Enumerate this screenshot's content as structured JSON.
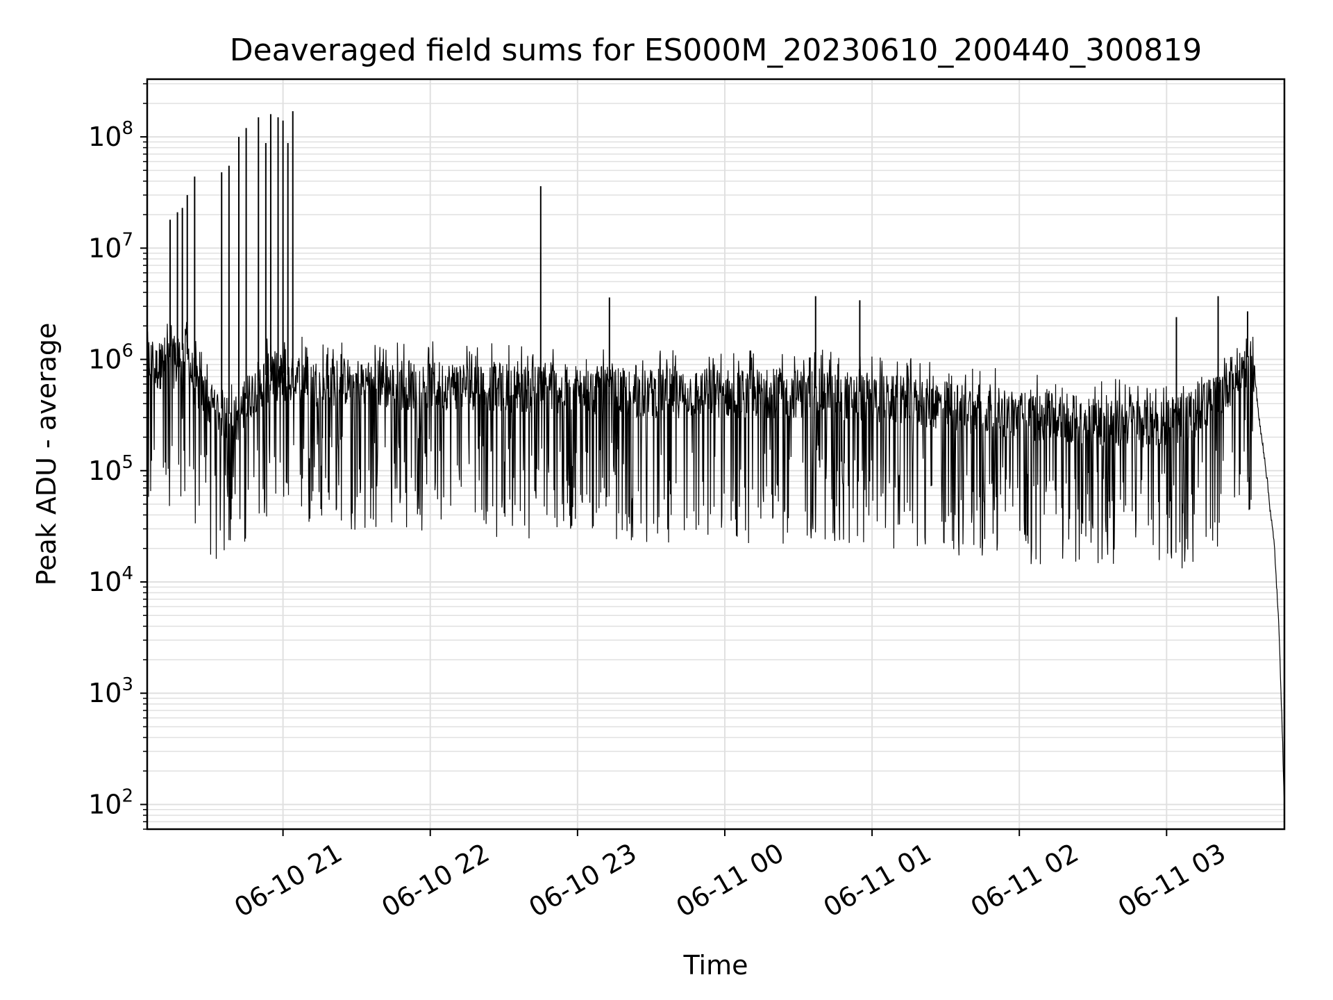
{
  "chart_data": {
    "type": "line",
    "title": "Deaveraged field sums for ES000M_20230610_200440_300819",
    "xlabel": "Time",
    "ylabel": "Peak ADU - average",
    "yscale": "log",
    "ylim": [
      60,
      330000000
    ],
    "xlim": [
      "2023-06-10 20:04:40",
      "2023-06-11 03:48:00"
    ],
    "grid": true,
    "line_color": "#000000",
    "grid_color": "#e0e0e0",
    "x_ticks": [
      {
        "value": "2023-06-10 21:00",
        "label": "06-10 21"
      },
      {
        "value": "2023-06-10 22:00",
        "label": "06-10 22"
      },
      {
        "value": "2023-06-10 23:00",
        "label": "06-10 23"
      },
      {
        "value": "2023-06-11 00:00",
        "label": "06-11 00"
      },
      {
        "value": "2023-06-11 01:00",
        "label": "06-11 01"
      },
      {
        "value": "2023-06-11 02:00",
        "label": "06-11 02"
      },
      {
        "value": "2023-06-11 03:00",
        "label": "06-11 03"
      }
    ],
    "y_ticks": [
      {
        "value": 100,
        "base": "10",
        "exp": "2"
      },
      {
        "value": 1000,
        "base": "10",
        "exp": "3"
      },
      {
        "value": 10000,
        "base": "10",
        "exp": "4"
      },
      {
        "value": 100000,
        "base": "10",
        "exp": "5"
      },
      {
        "value": 1000000,
        "base": "10",
        "exp": "6"
      },
      {
        "value": 10000000,
        "base": "10",
        "exp": "7"
      },
      {
        "value": 100000000,
        "base": "10",
        "exp": "8"
      }
    ],
    "series": [
      {
        "x": [
          "2023-06-10 20:04:40",
          "2023-06-10 20:08:00",
          "2023-06-10 20:12:00",
          "2023-06-10 20:16:00",
          "2023-06-10 20:20:00",
          "2023-06-10 20:24:00",
          "2023-06-10 20:28:00",
          "2023-06-10 20:32:00",
          "2023-06-10 20:36:00",
          "2023-06-10 20:40:00",
          "2023-06-10 20:44:00",
          "2023-06-10 20:48:00",
          "2023-06-10 20:52:00",
          "2023-06-10 20:56:00",
          "2023-06-10 21:00:00",
          "2023-06-10 21:04:00",
          "2023-06-10 21:08:00",
          "2023-06-10 21:12:00",
          "2023-06-10 21:16:00",
          "2023-06-10 21:20:00",
          "2023-06-10 21:30:00",
          "2023-06-10 21:45:00",
          "2023-06-10 22:00:00",
          "2023-06-10 22:20:00",
          "2023-06-10 22:40:00",
          "2023-06-10 23:00:00",
          "2023-06-10 23:20:00",
          "2023-06-10 23:40:00",
          "2023-06-11 00:00:00",
          "2023-06-11 00:20:00",
          "2023-06-11 00:40:00",
          "2023-06-11 01:00:00",
          "2023-06-11 01:20:00",
          "2023-06-11 01:40:00",
          "2023-06-11 02:00:00",
          "2023-06-11 02:20:00",
          "2023-06-11 02:40:00",
          "2023-06-11 03:00:00",
          "2023-06-11 03:10:00",
          "2023-06-11 03:20:00",
          "2023-06-11 03:30:00",
          "2023-06-11 03:34:00",
          "2023-06-11 03:36:00",
          "2023-06-11 03:38:00",
          "2023-06-11 03:40:00",
          "2023-06-11 03:42:00",
          "2023-06-11 03:44:00",
          "2023-06-11 03:46:00",
          "2023-06-11 03:48:00"
        ],
        "y": [
          1200000,
          900000,
          1100000,
          1000000,
          1300000,
          700000,
          500000,
          400000,
          350000,
          300000,
          400000,
          600000,
          700000,
          800000,
          750000,
          700000,
          800000,
          700000,
          650000,
          700000,
          700000,
          650000,
          650000,
          650000,
          600000,
          600000,
          550000,
          550000,
          550000,
          550000,
          550000,
          500000,
          450000,
          400000,
          350000,
          320000,
          300000,
          300000,
          350000,
          500000,
          900000,
          1100000,
          700000,
          250000,
          130000,
          50000,
          20000,
          3000,
          100
        ]
      }
    ],
    "spikes": [
      {
        "x": "2023-06-10 20:14:00",
        "y": 18000000
      },
      {
        "x": "2023-06-10 20:17:00",
        "y": 21000000
      },
      {
        "x": "2023-06-10 20:19:00",
        "y": 23000000
      },
      {
        "x": "2023-06-10 20:21:00",
        "y": 30000000
      },
      {
        "x": "2023-06-10 20:24:00",
        "y": 44000000
      },
      {
        "x": "2023-06-10 20:35:00",
        "y": 48000000
      },
      {
        "x": "2023-06-10 20:38:00",
        "y": 55000000
      },
      {
        "x": "2023-06-10 20:42:00",
        "y": 100000000
      },
      {
        "x": "2023-06-10 20:45:00",
        "y": 120000000
      },
      {
        "x": "2023-06-10 20:50:00",
        "y": 150000000
      },
      {
        "x": "2023-06-10 20:53:00",
        "y": 88000000
      },
      {
        "x": "2023-06-10 20:55:00",
        "y": 160000000
      },
      {
        "x": "2023-06-10 20:58:00",
        "y": 150000000
      },
      {
        "x": "2023-06-10 21:00:00",
        "y": 140000000
      },
      {
        "x": "2023-06-10 21:02:00",
        "y": 88000000
      },
      {
        "x": "2023-06-10 21:04:00",
        "y": 170000000
      },
      {
        "x": "2023-06-10 22:45:00",
        "y": 36000000
      },
      {
        "x": "2023-06-10 23:13:00",
        "y": 3600000
      },
      {
        "x": "2023-06-11 00:37:00",
        "y": 3700000
      },
      {
        "x": "2023-06-11 00:55:00",
        "y": 3400000
      },
      {
        "x": "2023-06-11 03:04:00",
        "y": 2400000
      },
      {
        "x": "2023-06-11 03:21:00",
        "y": 3700000
      },
      {
        "x": "2023-06-11 03:33:00",
        "y": 2700000
      }
    ]
  }
}
